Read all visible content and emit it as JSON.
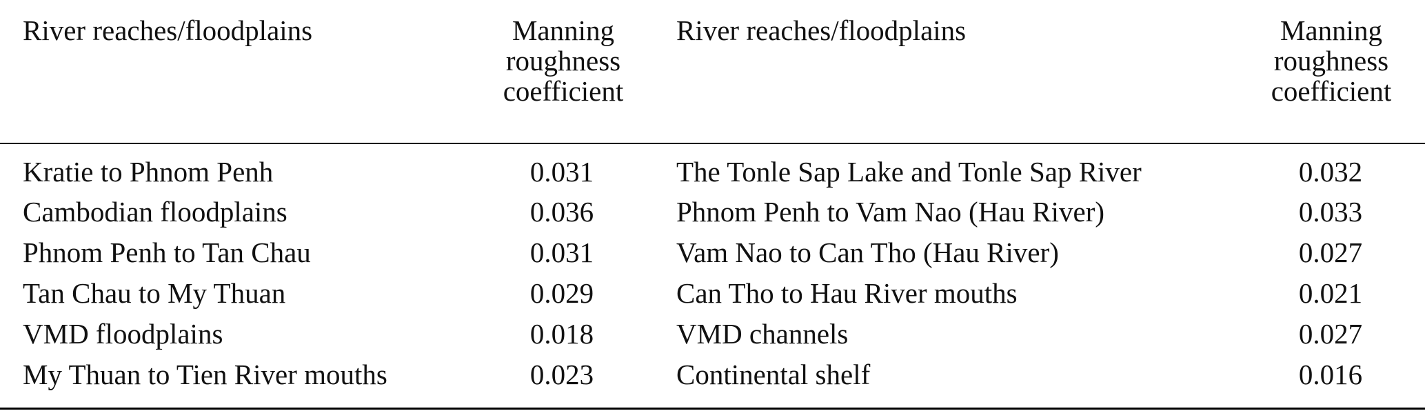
{
  "table": {
    "headers": {
      "left_name": "River reaches/floodplains",
      "left_coef": [
        "Manning",
        "roughness",
        "coefficient"
      ],
      "right_name": "River reaches/floodplains",
      "right_coef": [
        "Manning",
        "roughness",
        "coefficient"
      ]
    },
    "rows": [
      {
        "left_name": "Kratie to Phnom Penh",
        "left_value": "0.031",
        "right_name": "The Tonle Sap Lake and Tonle Sap River",
        "right_value": "0.032"
      },
      {
        "left_name": "Cambodian floodplains",
        "left_value": "0.036",
        "right_name": "Phnom Penh to Vam Nao (Hau River)",
        "right_value": "0.033"
      },
      {
        "left_name": "Phnom Penh to Tan Chau",
        "left_value": "0.031",
        "right_name": "Vam Nao to Can Tho (Hau River)",
        "right_value": "0.027"
      },
      {
        "left_name": "Tan Chau to My Thuan",
        "left_value": "0.029",
        "right_name": "Can Tho to Hau River mouths",
        "right_value": "0.021"
      },
      {
        "left_name": "VMD floodplains",
        "left_value": "0.018",
        "right_name": "VMD channels",
        "right_value": "0.027"
      },
      {
        "left_name": "My Thuan to Tien River mouths",
        "left_value": "0.023",
        "right_name": "Continental shelf",
        "right_value": "0.016"
      }
    ]
  }
}
